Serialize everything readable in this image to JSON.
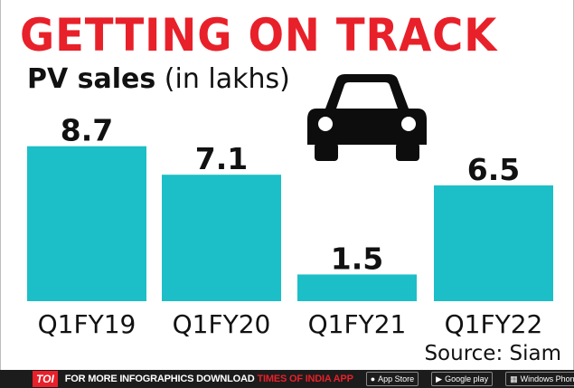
{
  "title": "GETTING ON TRACK",
  "subtitle_bold": "PV sales",
  "subtitle_rest": " (in lakhs)",
  "icon": "car-icon",
  "colors": {
    "title": "#e8202a",
    "bar": "#1cbfc7",
    "text": "#111111",
    "footer_bg": "#1c1c1c"
  },
  "chart_data": {
    "type": "bar",
    "categories": [
      "Q1FY19",
      "Q1FY20",
      "Q1FY21",
      "Q1FY22"
    ],
    "values": [
      8.7,
      7.1,
      1.5,
      6.5
    ],
    "data_labels": [
      "8.7",
      "7.1",
      "1.5",
      "6.5"
    ],
    "title": "GETTING ON TRACK",
    "ylabel": "PV sales (in lakhs)",
    "ylim": [
      0,
      9.8
    ],
    "grid": false
  },
  "source": "Source: Siam",
  "footer": {
    "badge": "TOI",
    "promo": "FOR MORE  INFOGRAPHICS DOWNLOAD",
    "promo_app": "TIMES OF INDIA  APP",
    "stores": [
      {
        "icon": "apple-icon",
        "label": "App Store"
      },
      {
        "icon": "google-play-icon",
        "label": "Google play"
      },
      {
        "icon": "windows-icon",
        "label": "Windows Phone"
      }
    ]
  }
}
